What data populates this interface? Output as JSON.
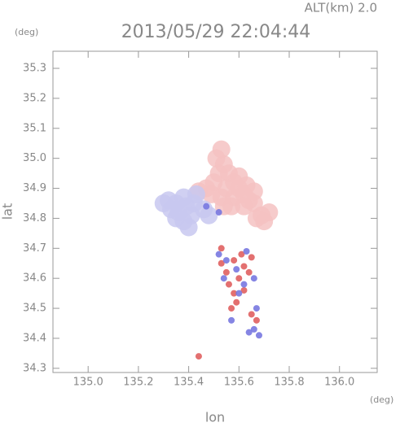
{
  "chart_data": {
    "type": "scatter",
    "title": "2013/05/29 22:04:44",
    "subtitle": "ALT(km) 2.0",
    "y_unit": "(deg)",
    "x_unit": "(deg)",
    "xlabel": "lon",
    "ylabel": "lat",
    "xlim": [
      134.86,
      136.15
    ],
    "ylim": [
      34.286,
      35.357
    ],
    "xticks": [
      {
        "value": 135,
        "label": "135.0"
      },
      135.2,
      135.4,
      135.6,
      135.8,
      {
        "value": 136,
        "label": "136.0"
      }
    ],
    "yticks": [
      34.3,
      34.4,
      34.5,
      34.6,
      34.7,
      34.8,
      34.9,
      {
        "value": 35,
        "label": "35.0"
      },
      35.1,
      35.2,
      35.3
    ],
    "series": [
      {
        "color": "#f4c2c2",
        "x": [
          135.53,
          135.54,
          135.52,
          135.56,
          135.58,
          135.6,
          135.62,
          135.64,
          135.66,
          135.5,
          135.47,
          135.55,
          135.58,
          135.62,
          135.53,
          135.49,
          135.6,
          135.63,
          135.66,
          135.57,
          135.54,
          135.69,
          135.7,
          135.72,
          135.67,
          135.44,
          135.51
        ],
        "y": [
          35.03,
          34.98,
          34.95,
          34.95,
          34.92,
          34.9,
          34.88,
          34.86,
          34.85,
          34.92,
          34.9,
          34.9,
          34.87,
          34.84,
          34.87,
          34.88,
          34.94,
          34.91,
          34.89,
          34.84,
          34.84,
          34.81,
          34.79,
          34.82,
          34.8,
          34.89,
          35.0
        ]
      },
      {
        "color": "#c8c8f0",
        "x": [
          135.32,
          135.35,
          135.38,
          135.33,
          135.36,
          135.39,
          135.42,
          135.41,
          135.38,
          135.35,
          135.43,
          135.46,
          135.48,
          135.4,
          135.3
        ],
        "y": [
          34.86,
          34.85,
          34.87,
          34.83,
          34.82,
          34.84,
          34.85,
          34.81,
          34.79,
          34.8,
          34.88,
          34.83,
          34.81,
          34.77,
          34.85
        ]
      },
      {
        "color": "#e06060",
        "x": [
          135.53,
          135.58,
          135.62,
          135.6,
          135.64,
          135.56,
          135.62,
          135.65,
          135.55,
          135.57,
          135.59,
          135.65,
          135.67,
          135.58,
          135.53,
          135.44,
          135.61
        ],
        "y": [
          34.7,
          34.66,
          34.64,
          34.6,
          34.62,
          34.58,
          34.56,
          34.67,
          34.62,
          34.5,
          34.52,
          34.48,
          34.46,
          34.55,
          34.65,
          34.34,
          34.68
        ]
      },
      {
        "color": "#7878e0",
        "x": [
          135.52,
          135.55,
          135.63,
          135.59,
          135.54,
          135.66,
          135.62,
          135.57,
          135.67,
          135.66,
          135.68,
          135.64,
          135.6,
          135.47,
          135.52
        ],
        "y": [
          34.68,
          34.66,
          34.69,
          34.63,
          34.6,
          34.6,
          34.58,
          34.46,
          34.5,
          34.43,
          34.41,
          34.42,
          34.55,
          34.84,
          34.82
        ]
      }
    ]
  }
}
